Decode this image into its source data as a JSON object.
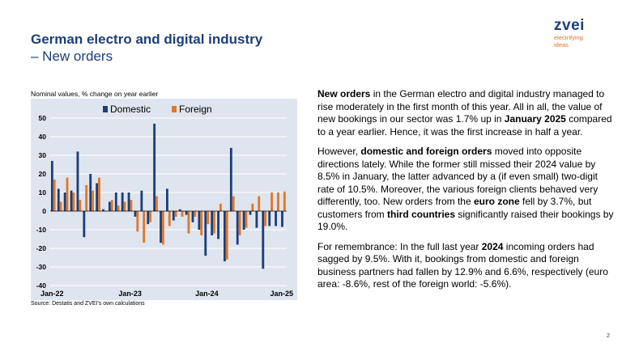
{
  "header": {
    "title_line1": "German electro and digital industry",
    "title_line2": "– New orders"
  },
  "logo": {
    "word": "zvei",
    "tagline_1": "electrifying",
    "tagline_2": "ideas"
  },
  "chart_caption": "Nominal values, % change on year earlier",
  "source": "Source: Destatis and ZVEI's own calculations",
  "page_number": "2",
  "colors": {
    "domestic": "#1c3f7a",
    "foreign": "#e0782a",
    "plot_bg": "#dfe5ee",
    "title": "#1c3f7a"
  },
  "chart_data": {
    "type": "bar",
    "title": "",
    "xlabel": "",
    "ylabel": "",
    "ylim": [
      -40,
      50
    ],
    "yticks": [
      50,
      40,
      30,
      20,
      10,
      0,
      -10,
      -20,
      -30,
      -40
    ],
    "grid": true,
    "legend_position": "top",
    "x_tick_labels": [
      {
        "index": 0,
        "label": "Jan-22"
      },
      {
        "index": 12,
        "label": "Jan-23"
      },
      {
        "index": 24,
        "label": "Jan-24"
      },
      {
        "index": 36,
        "label": "Jan-25"
      }
    ],
    "categories": [
      "Jan-22",
      "Feb-22",
      "Mar-22",
      "Apr-22",
      "May-22",
      "Jun-22",
      "Jul-22",
      "Aug-22",
      "Sep-22",
      "Oct-22",
      "Nov-22",
      "Dec-22",
      "Jan-23",
      "Feb-23",
      "Mar-23",
      "Apr-23",
      "May-23",
      "Jun-23",
      "Jul-23",
      "Aug-23",
      "Sep-23",
      "Oct-23",
      "Nov-23",
      "Dec-23",
      "Jan-24",
      "Feb-24",
      "Mar-24",
      "Apr-24",
      "May-24",
      "Jun-24",
      "Jul-24",
      "Aug-24",
      "Sep-24",
      "Oct-24",
      "Nov-24",
      "Dec-24",
      "Jan-25"
    ],
    "series": [
      {
        "name": "Domestic",
        "color": "#1c3f7a",
        "values": [
          27,
          12,
          10,
          11,
          32,
          -14,
          20,
          15,
          1,
          5,
          10,
          10,
          10,
          -3,
          11,
          -7,
          47,
          -17,
          12,
          -5,
          1,
          -2,
          -6,
          -10,
          -24,
          -13,
          -15,
          -27,
          34,
          -18,
          -10,
          -2,
          -9,
          -31,
          -8,
          -8,
          -8.5
        ]
      },
      {
        "name": "Foreign",
        "color": "#e0782a",
        "values": [
          17,
          5,
          18,
          10,
          6,
          14,
          11,
          18,
          0,
          6,
          3,
          5,
          6,
          -11,
          -17,
          -6,
          8,
          -18,
          -8,
          -3,
          -3,
          -12,
          -3,
          -13,
          -7,
          -12,
          4,
          -26,
          8,
          -13,
          -9,
          4,
          8,
          -8,
          10,
          10,
          10.5
        ]
      }
    ]
  },
  "text": {
    "p1": [
      {
        "t": "New orders",
        "b": true
      },
      {
        "t": " in the German electro and digital industry managed to rise moderately in the first month of this year. All in all, the value of new bookings in our sector was 1.7% up in ",
        "b": false
      },
      {
        "t": "January 2025",
        "b": true
      },
      {
        "t": " compared to a year earlier. Hence, it was the first increase in half a year.",
        "b": false
      }
    ],
    "p2": [
      {
        "t": "However, ",
        "b": false
      },
      {
        "t": "domestic and foreign orders",
        "b": true
      },
      {
        "t": " moved into opposite directions lately. While the former still missed their 2024 value by 8.5% in January, the latter advanced by a (if even small) two-digit rate of 10.5%. Moreover, the various foreign clients behaved very differently, too. New orders from the ",
        "b": false
      },
      {
        "t": "euro zone",
        "b": true
      },
      {
        "t": " fell by 3.7%, but customers from ",
        "b": false
      },
      {
        "t": "third countries",
        "b": true
      },
      {
        "t": " significantly raised their bookings by 19.0%.",
        "b": false
      }
    ],
    "p3": [
      {
        "t": "For remembrance: In the full last year ",
        "b": false
      },
      {
        "t": "2024",
        "b": true
      },
      {
        "t": " incoming orders had sagged by 9.5%. With it, bookings from domestic and foreign business partners had fallen by 12.9% and 6.6%, respectively (euro area: -8.6%, rest of the foreign world: -5.6%).",
        "b": false
      }
    ]
  }
}
